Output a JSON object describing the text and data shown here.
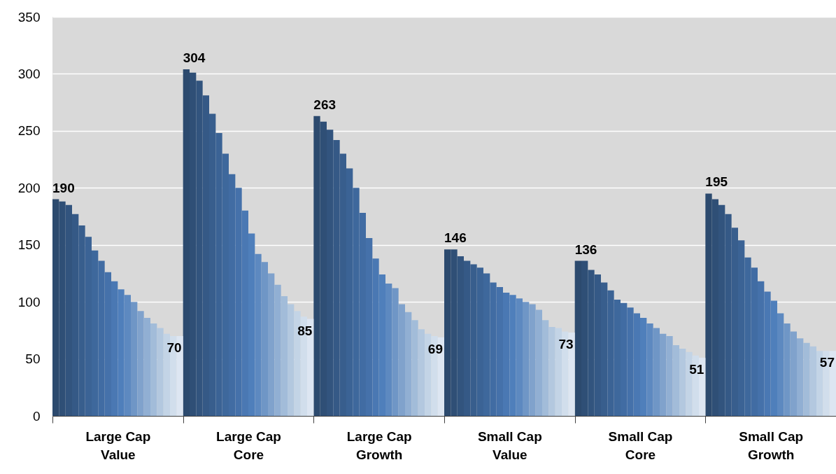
{
  "chart_data": {
    "type": "bar",
    "categories": [
      "Large Cap Value",
      "Large Cap Core",
      "Large Cap Growth",
      "Small Cap Value",
      "Small Cap Core",
      "Small Cap Growth"
    ],
    "ylim": [
      0,
      350
    ],
    "yticks": [
      0,
      50,
      100,
      150,
      200,
      250,
      300,
      350
    ],
    "grid": "y",
    "series": [
      {
        "color": "#2c4a6e",
        "values": [
          190,
          304,
          263,
          146,
          136,
          195
        ],
        "value_labels": [
          "190",
          "304",
          "263",
          "146",
          "136",
          "195"
        ]
      },
      {
        "color": "#2f4f76",
        "values": [
          188,
          301,
          258,
          146,
          136,
          190
        ]
      },
      {
        "color": "#32547e",
        "values": [
          185,
          294,
          251,
          140,
          128,
          185
        ]
      },
      {
        "color": "#355986",
        "values": [
          177,
          281,
          242,
          136,
          124,
          177
        ]
      },
      {
        "color": "#385e8d",
        "values": [
          167,
          265,
          230,
          133,
          117,
          165
        ]
      },
      {
        "color": "#3b6395",
        "values": [
          157,
          248,
          217,
          130,
          110,
          154
        ]
      },
      {
        "color": "#3e689c",
        "values": [
          145,
          230,
          200,
          125,
          102,
          139
        ]
      },
      {
        "color": "#416ca3",
        "values": [
          136,
          212,
          178,
          117,
          99,
          130
        ]
      },
      {
        "color": "#4571aa",
        "values": [
          126,
          200,
          156,
          113,
          95,
          118
        ]
      },
      {
        "color": "#4a78b3",
        "values": [
          118,
          180,
          138,
          108,
          90,
          109
        ]
      },
      {
        "color": "#4f7fbb",
        "values": [
          111,
          160,
          124,
          106,
          86,
          101
        ]
      },
      {
        "color": "#5d89c0",
        "values": [
          106,
          142,
          116,
          103,
          81,
          90
        ]
      },
      {
        "color": "#6f96c6",
        "values": [
          100,
          135,
          112,
          100,
          77,
          81
        ]
      },
      {
        "color": "#80a2cc",
        "values": [
          92,
          125,
          98,
          98,
          72,
          74
        ]
      },
      {
        "color": "#91afd3",
        "values": [
          86,
          115,
          91,
          93,
          70,
          68
        ]
      },
      {
        "color": "#a2bcd9",
        "values": [
          81,
          105,
          84,
          84,
          62,
          64
        ]
      },
      {
        "color": "#b3c8df",
        "values": [
          77,
          98,
          76,
          78,
          59,
          61
        ]
      },
      {
        "color": "#c3d4e6",
        "values": [
          72,
          92,
          72,
          77,
          56,
          57
        ]
      },
      {
        "color": "#d1deec",
        "values": [
          70,
          87,
          70,
          74,
          53,
          57
        ]
      },
      {
        "color": "#dde6f2",
        "values": [
          70,
          85,
          69,
          73,
          51,
          57
        ],
        "value_labels": [
          "70",
          "85",
          "69",
          "73",
          "51",
          "57"
        ]
      }
    ]
  }
}
